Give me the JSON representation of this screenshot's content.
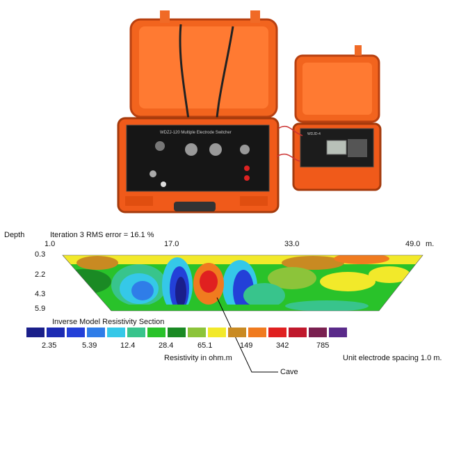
{
  "section": {
    "depth_label": "Depth",
    "iteration_text": "Iteration 3 RMS error = 16.1 %",
    "x_ticks": [
      "1.0",
      "17.0",
      "33.0",
      "49.0"
    ],
    "x_unit": "m.",
    "depth_ticks": [
      "0.3",
      "2.2",
      "4.3",
      "5.9"
    ],
    "title": "Inverse Model Resistivity Section",
    "resistivity_unit": "Resistivity in ohm.m",
    "spacing": "Unit electrode spacing 1.0 m.",
    "cave_label": "Cave"
  },
  "legend": {
    "colors": [
      "#1a1f8a",
      "#1c2bb3",
      "#2340d8",
      "#2f7de8",
      "#35c8e8",
      "#38c48c",
      "#29c22a",
      "#1a8a24",
      "#8cc43a",
      "#f2e92a",
      "#c98a22",
      "#f07b1f",
      "#e02020",
      "#c0182c",
      "#7a2050",
      "#5a2a8a"
    ],
    "labels": [
      "2.35",
      "5.39",
      "12.4",
      "28.4",
      "65.1",
      "149",
      "342",
      "785"
    ]
  },
  "devices": {
    "main_panel_label": "WDZJ-120 Multiple Electrode Switcher",
    "instrument_label": "WDJD-4"
  }
}
